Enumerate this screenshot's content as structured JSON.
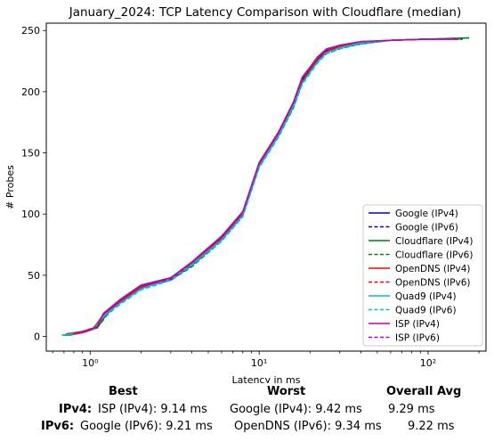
{
  "chart_data": {
    "type": "line",
    "title": "January_2024: TCP Latency Comparison with Cloudflare (median)",
    "xlabel": "Latency in ms",
    "ylabel": "# Probes",
    "xscale": "log",
    "xlim": [
      0.55,
      220
    ],
    "ylim": [
      -12,
      256
    ],
    "x_ticks": [
      {
        "value": 1,
        "label": "10⁰"
      },
      {
        "value": 10,
        "label": "10¹"
      },
      {
        "value": 100,
        "label": "10²"
      }
    ],
    "y_ticks": [
      0,
      50,
      100,
      150,
      200,
      250
    ],
    "legend_position": "lower-right",
    "series": [
      {
        "name": "Google (IPv4)",
        "color": "#0000cc",
        "dash": "solid",
        "x": [
          0.72,
          0.9,
          1.05,
          1.2,
          1.5,
          2,
          3,
          4,
          6,
          8,
          10,
          13,
          16,
          18,
          20,
          22,
          25,
          30,
          40,
          60,
          100,
          150
        ],
        "y": [
          1,
          3,
          6,
          18,
          28,
          40,
          48,
          60,
          80,
          100,
          140,
          165,
          190,
          210,
          218,
          226,
          233,
          237,
          240,
          242,
          243,
          243
        ]
      },
      {
        "name": "Google (IPv6)",
        "color": "#0000cc",
        "dash": "dashed",
        "x": [
          0.7,
          0.9,
          1.05,
          1.2,
          1.5,
          2,
          3,
          4,
          6,
          8,
          10,
          13,
          16,
          18,
          20,
          22,
          25,
          30,
          40,
          60,
          100,
          160
        ],
        "y": [
          1,
          3,
          6,
          17,
          27,
          39,
          47,
          59,
          79,
          99,
          139,
          164,
          189,
          209,
          217,
          225,
          232,
          236,
          240,
          242,
          243,
          243
        ]
      },
      {
        "name": "Cloudflare (IPv4)",
        "color": "#008000",
        "dash": "solid",
        "x": [
          0.75,
          0.9,
          1.1,
          1.25,
          1.5,
          2,
          3,
          4,
          6,
          8,
          10,
          13,
          16,
          18,
          20,
          22,
          25,
          30,
          40,
          60,
          100,
          175
        ],
        "y": [
          1,
          3,
          7,
          18,
          28,
          40,
          46,
          58,
          79,
          99,
          139,
          164,
          188,
          208,
          217,
          225,
          232,
          236,
          239,
          242,
          243,
          244
        ]
      },
      {
        "name": "Cloudflare (IPv6)",
        "color": "#008000",
        "dash": "dashed",
        "x": [
          0.75,
          0.9,
          1.1,
          1.25,
          1.5,
          2,
          3,
          4,
          6,
          8,
          10,
          13,
          16,
          18,
          20,
          22,
          25,
          30,
          40,
          60,
          100,
          170
        ],
        "y": [
          1,
          3,
          7,
          17,
          27,
          39,
          46,
          57,
          78,
          98,
          138,
          163,
          187,
          207,
          216,
          224,
          231,
          235,
          239,
          242,
          243,
          244
        ]
      },
      {
        "name": "OpenDNS (IPv4)",
        "color": "#ff0000",
        "dash": "solid",
        "x": [
          0.73,
          0.9,
          1.05,
          1.2,
          1.5,
          2,
          3,
          4,
          6,
          8,
          10,
          13,
          16,
          18,
          20,
          22,
          25,
          30,
          40,
          60,
          100,
          150
        ],
        "y": [
          2,
          4,
          7,
          18,
          29,
          41,
          48,
          60,
          81,
          101,
          141,
          166,
          191,
          211,
          219,
          227,
          234,
          237,
          240,
          242,
          243,
          243
        ]
      },
      {
        "name": "OpenDNS (IPv6)",
        "color": "#ff0000",
        "dash": "dashed",
        "x": [
          0.72,
          0.9,
          1.05,
          1.2,
          1.5,
          2,
          3,
          4,
          6,
          8,
          10,
          13,
          16,
          18,
          20,
          22,
          25,
          30,
          40,
          60,
          100,
          155
        ],
        "y": [
          2,
          4,
          7,
          17,
          28,
          40,
          47,
          59,
          80,
          100,
          140,
          165,
          190,
          210,
          218,
          226,
          233,
          237,
          240,
          242,
          243,
          243
        ]
      },
      {
        "name": "Quad9 (IPv4)",
        "color": "#00bfbf",
        "dash": "solid",
        "x": [
          0.68,
          0.9,
          1.05,
          1.2,
          1.5,
          2,
          3,
          4,
          6,
          8,
          10,
          13,
          16,
          18,
          20,
          22,
          25,
          30,
          40,
          60,
          100,
          150
        ],
        "y": [
          1,
          3,
          6,
          17,
          27,
          39,
          47,
          59,
          79,
          99,
          139,
          164,
          189,
          207,
          216,
          224,
          232,
          236,
          240,
          242,
          243,
          243
        ]
      },
      {
        "name": "Quad9 (IPv6)",
        "color": "#00bfbf",
        "dash": "dashed",
        "x": [
          0.68,
          0.9,
          1.05,
          1.2,
          1.5,
          2,
          3,
          4,
          6,
          8,
          10,
          13,
          16,
          18,
          20,
          22,
          25,
          30,
          40,
          60,
          100,
          155
        ],
        "y": [
          1,
          3,
          6,
          16,
          26,
          38,
          46,
          58,
          78,
          98,
          138,
          163,
          188,
          206,
          215,
          223,
          231,
          235,
          239,
          242,
          243,
          243
        ]
      },
      {
        "name": "ISP (IPv4)",
        "color": "#bf00bf",
        "dash": "solid",
        "x": [
          0.8,
          0.95,
          1.1,
          1.2,
          1.5,
          2,
          3,
          4,
          6,
          8,
          10,
          13,
          16,
          18,
          20,
          22,
          25,
          30,
          40,
          60,
          100,
          150
        ],
        "y": [
          2,
          4,
          8,
          19,
          30,
          42,
          48,
          61,
          82,
          102,
          142,
          167,
          192,
          212,
          220,
          228,
          235,
          238,
          241,
          242,
          243,
          243
        ]
      },
      {
        "name": "ISP (IPv6)",
        "color": "#bf00bf",
        "dash": "dashed",
        "x": [
          0.8,
          0.95,
          1.1,
          1.2,
          1.5,
          2,
          3,
          4,
          6,
          8,
          10,
          13,
          16,
          18,
          20,
          22,
          25,
          30,
          40,
          60,
          100,
          150
        ],
        "y": [
          2,
          4,
          8,
          18,
          29,
          41,
          47,
          60,
          81,
          101,
          141,
          166,
          191,
          211,
          219,
          227,
          234,
          238,
          241,
          242,
          243,
          243
        ]
      }
    ]
  },
  "stats": {
    "headers": {
      "best": "Best",
      "worst": "Worst",
      "avg": "Overall Avg"
    },
    "rows": [
      {
        "label": "IPv4:",
        "best": "ISP (IPv4): 9.14 ms",
        "worst": "Google (IPv4): 9.42 ms",
        "avg": "9.29 ms"
      },
      {
        "label": "IPv6:",
        "best": "Google (IPv6): 9.21 ms",
        "worst": "OpenDNS (IPv6): 9.34 ms",
        "avg": "9.22 ms"
      }
    ]
  }
}
